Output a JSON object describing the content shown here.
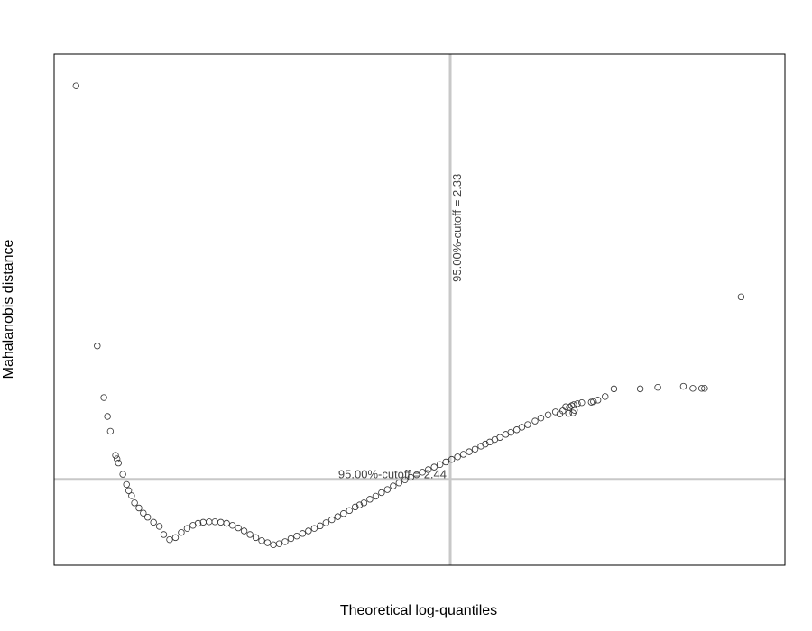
{
  "chart_data": {
    "type": "scatter",
    "title": "",
    "xlabel": "Theoretical log-quantiles",
    "ylabel": "Mahalanobis distance",
    "xlim": [
      0,
      1
    ],
    "ylim": [
      0,
      1
    ],
    "grid": false,
    "points": {
      "marker": "open-circle",
      "color": "#333333"
    },
    "cutoff_lines": {
      "color": "#c8c8c8",
      "vertical": {
        "x": 0.542,
        "label": "95.00%-cutoff =    2.33"
      },
      "horizontal": {
        "y": 0.168,
        "label": "95.00%-cutoff =    2.44"
      }
    },
    "series": [
      {
        "x": [
          0.03,
          0.059,
          0.068,
          0.073,
          0.077,
          0.084,
          0.086,
          0.088,
          0.094,
          0.099,
          0.102,
          0.106,
          0.11,
          0.116,
          0.122,
          0.128,
          0.136,
          0.144,
          0.15,
          0.158,
          0.166,
          0.174,
          0.182,
          0.19,
          0.197,
          0.204,
          0.212,
          0.22,
          0.228,
          0.236,
          0.244,
          0.252,
          0.26,
          0.268,
          0.276,
          0.284,
          0.292,
          0.3,
          0.308,
          0.316,
          0.324,
          0.332,
          0.34,
          0.348,
          0.356,
          0.364,
          0.372,
          0.38,
          0.388,
          0.396,
          0.404,
          0.412,
          0.418,
          0.424,
          0.432,
          0.44,
          0.448,
          0.456,
          0.464,
          0.472,
          0.48,
          0.488,
          0.496,
          0.504,
          0.512,
          0.52,
          0.528,
          0.536,
          0.544,
          0.552,
          0.56,
          0.568,
          0.576,
          0.584,
          0.59,
          0.596,
          0.603,
          0.61,
          0.618,
          0.625,
          0.633,
          0.64,
          0.648,
          0.658,
          0.666,
          0.676,
          0.686,
          0.692,
          0.696,
          0.7,
          0.704,
          0.705,
          0.708,
          0.71,
          0.711,
          0.712,
          0.716,
          0.722,
          0.735,
          0.738,
          0.744,
          0.754,
          0.766,
          0.802,
          0.826,
          0.861,
          0.874,
          0.886,
          0.89,
          0.94
        ],
        "y": [
          0.938,
          0.429,
          0.328,
          0.291,
          0.262,
          0.215,
          0.208,
          0.2,
          0.178,
          0.158,
          0.146,
          0.136,
          0.122,
          0.112,
          0.102,
          0.094,
          0.084,
          0.076,
          0.06,
          0.05,
          0.054,
          0.064,
          0.072,
          0.078,
          0.082,
          0.084,
          0.085,
          0.085,
          0.084,
          0.082,
          0.078,
          0.073,
          0.067,
          0.06,
          0.054,
          0.048,
          0.044,
          0.04,
          0.042,
          0.046,
          0.052,
          0.057,
          0.062,
          0.067,
          0.072,
          0.077,
          0.083,
          0.089,
          0.095,
          0.101,
          0.107,
          0.114,
          0.118,
          0.122,
          0.129,
          0.135,
          0.142,
          0.148,
          0.155,
          0.161,
          0.167,
          0.172,
          0.177,
          0.182,
          0.187,
          0.192,
          0.197,
          0.202,
          0.207,
          0.212,
          0.217,
          0.222,
          0.227,
          0.233,
          0.237,
          0.241,
          0.246,
          0.25,
          0.256,
          0.26,
          0.265,
          0.27,
          0.275,
          0.282,
          0.288,
          0.294,
          0.3,
          0.296,
          0.302,
          0.31,
          0.297,
          0.309,
          0.312,
          0.298,
          0.314,
          0.303,
          0.316,
          0.318,
          0.319,
          0.32,
          0.323,
          0.33,
          0.345,
          0.345,
          0.348,
          0.35,
          0.346,
          0.346,
          0.346,
          0.525
        ]
      }
    ]
  }
}
